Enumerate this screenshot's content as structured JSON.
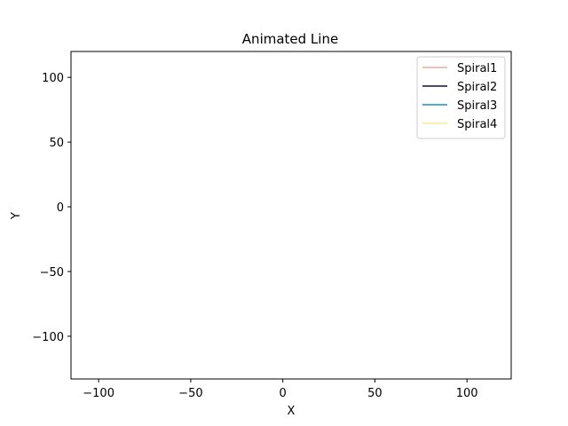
{
  "chart_data": {
    "type": "line",
    "title": "Animated Line",
    "xlabel": "X",
    "ylabel": "Y",
    "xlim": [
      -115,
      124
    ],
    "ylim": [
      -133,
      120
    ],
    "xticks": [
      -100,
      -50,
      0,
      50,
      100
    ],
    "xtick_labels": [
      "−100",
      "−50",
      "0",
      "50",
      "100"
    ],
    "yticks": [
      -100,
      -50,
      0,
      50,
      100
    ],
    "ytick_labels": [
      "−100",
      "−50",
      "0",
      "50",
      "100"
    ],
    "grid": false,
    "legend_position": "top-right",
    "series": [
      {
        "name": "Spiral1",
        "color": "#f0a8a0",
        "x": [],
        "y": []
      },
      {
        "name": "Spiral2",
        "color": "#1a0f3a",
        "x": [],
        "y": []
      },
      {
        "name": "Spiral3",
        "color": "#1a8fc8",
        "x": [],
        "y": []
      },
      {
        "name": "Spiral4",
        "color": "#f2ec9c",
        "x": [],
        "y": []
      }
    ]
  }
}
